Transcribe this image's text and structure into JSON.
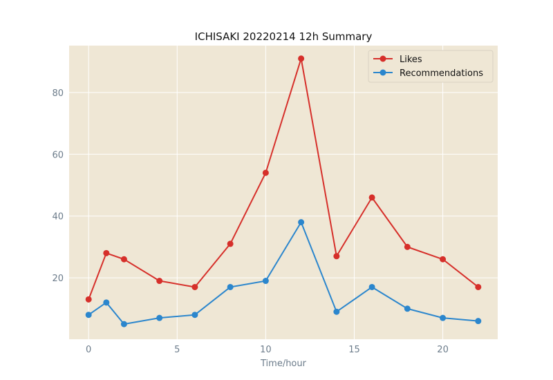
{
  "chart_data": {
    "type": "line",
    "title": "ICHISAKI 20220214 12h Summary",
    "xlabel": "Time/hour",
    "ylabel": "",
    "xlim": [
      -1.1,
      23.1
    ],
    "ylim": [
      0.1,
      95.2
    ],
    "xticks": [
      0,
      5,
      10,
      15,
      20
    ],
    "yticks": [
      20,
      40,
      60,
      80
    ],
    "grid": true,
    "legend_position": "top-right",
    "background": "#efe7d5",
    "series": [
      {
        "name": "Likes",
        "color": "#d62f2a",
        "x": [
          0,
          1,
          2,
          4,
          6,
          8,
          10,
          12,
          14,
          16,
          18,
          20,
          22
        ],
        "y": [
          13,
          28,
          26,
          19,
          17,
          31,
          54,
          91,
          27,
          46,
          30,
          26,
          17
        ]
      },
      {
        "name": "Recommendations",
        "color": "#2b86cd",
        "x": [
          0,
          1,
          2,
          4,
          6,
          8,
          10,
          12,
          14,
          16,
          18,
          20,
          22
        ],
        "y": [
          8,
          12,
          5,
          7,
          8,
          17,
          19,
          38,
          9,
          17,
          10,
          7,
          6
        ]
      }
    ]
  }
}
